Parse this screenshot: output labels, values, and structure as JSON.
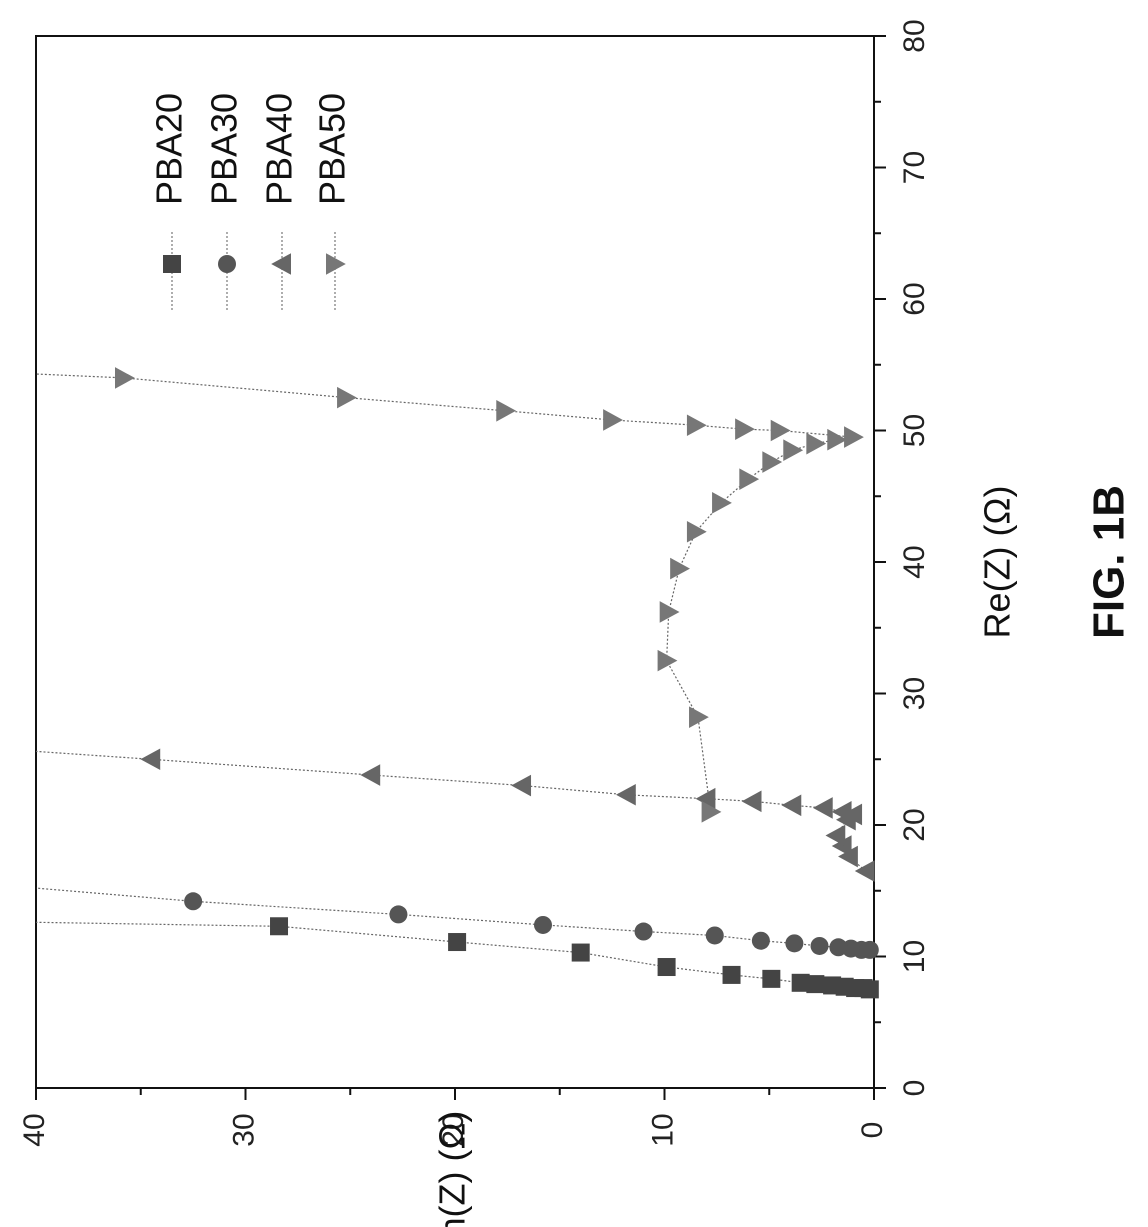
{
  "figure_label": "FIG. 1B",
  "chart_data": {
    "type": "scatter",
    "orientation": "rotated 90 degrees counter-clockwise",
    "xlabel": "Re(Z) (Ω)",
    "ylabel": "-Im(Z) (Ω)",
    "xlim": [
      0,
      80
    ],
    "ylim": [
      0,
      40
    ],
    "x_ticks": [
      0,
      10,
      20,
      30,
      40,
      50,
      60,
      70,
      80
    ],
    "y_ticks": [
      0,
      10,
      20,
      30,
      40
    ],
    "grid": false,
    "legend_position": "top-left",
    "series": [
      {
        "name": "PBA20",
        "marker": "square",
        "color": "#444444",
        "points": [
          [
            7.5,
            0.2
          ],
          [
            7.6,
            0.5
          ],
          [
            7.6,
            0.9
          ],
          [
            7.7,
            1.4
          ],
          [
            7.8,
            2.0
          ],
          [
            7.9,
            2.8
          ],
          [
            8.0,
            3.5
          ],
          [
            8.3,
            4.9
          ],
          [
            8.6,
            6.8
          ],
          [
            9.2,
            9.9
          ],
          [
            10.3,
            14.0
          ],
          [
            11.1,
            19.9
          ],
          [
            12.3,
            28.4
          ],
          [
            12.6,
            40.0
          ]
        ]
      },
      {
        "name": "PBA30",
        "marker": "circle",
        "color": "#555555",
        "points": [
          [
            10.5,
            0.2
          ],
          [
            10.5,
            0.6
          ],
          [
            10.6,
            1.1
          ],
          [
            10.7,
            1.7
          ],
          [
            10.8,
            2.6
          ],
          [
            11.0,
            3.8
          ],
          [
            11.2,
            5.4
          ],
          [
            11.6,
            7.6
          ],
          [
            11.9,
            11.0
          ],
          [
            12.4,
            15.8
          ],
          [
            13.2,
            22.7
          ],
          [
            14.2,
            32.5
          ],
          [
            15.2,
            40.0
          ]
        ]
      },
      {
        "name": "PBA40",
        "marker": "triangle-left",
        "color": "#666666",
        "points": [
          [
            16.5,
            0.4
          ],
          [
            17.6,
            1.2
          ],
          [
            18.4,
            1.5
          ],
          [
            19.2,
            1.8
          ],
          [
            20.4,
            1.3
          ],
          [
            20.8,
            1.0
          ],
          [
            21.0,
            1.5
          ],
          [
            21.3,
            2.4
          ],
          [
            21.5,
            3.9
          ],
          [
            21.8,
            5.8
          ],
          [
            22.0,
            8.0
          ],
          [
            22.3,
            11.8
          ],
          [
            23.0,
            16.8
          ],
          [
            23.8,
            24.0
          ],
          [
            25.0,
            34.5
          ],
          [
            25.6,
            40.0
          ]
        ]
      },
      {
        "name": "PBA50",
        "marker": "triangle-right",
        "color": "#777777",
        "points": [
          [
            21.0,
            7.8
          ],
          [
            28.2,
            8.4
          ],
          [
            32.5,
            9.9
          ],
          [
            36.2,
            9.8
          ],
          [
            39.5,
            9.3
          ],
          [
            42.3,
            8.5
          ],
          [
            44.5,
            7.3
          ],
          [
            46.3,
            6.0
          ],
          [
            47.6,
            4.9
          ],
          [
            48.5,
            3.9
          ],
          [
            49.0,
            2.8
          ],
          [
            49.3,
            1.8
          ],
          [
            49.5,
            1.0
          ],
          [
            50.0,
            4.5
          ],
          [
            50.1,
            6.2
          ],
          [
            50.4,
            8.5
          ],
          [
            50.8,
            12.5
          ],
          [
            51.5,
            17.6
          ],
          [
            52.5,
            25.2
          ],
          [
            54.0,
            35.8
          ],
          [
            54.3,
            40.0
          ]
        ]
      }
    ]
  }
}
